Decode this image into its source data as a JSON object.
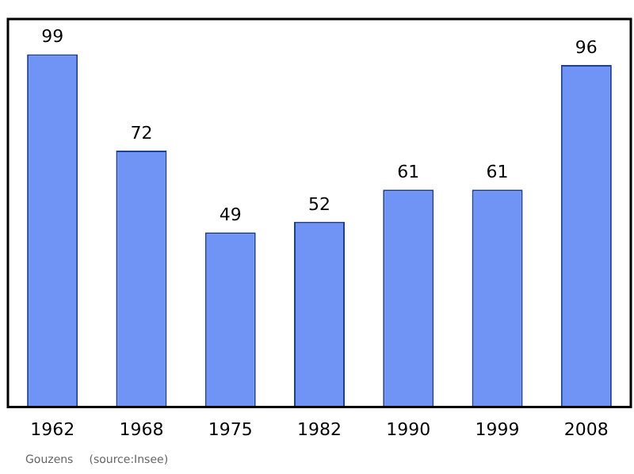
{
  "chart_data": {
    "type": "bar",
    "categories": [
      "1962",
      "1968",
      "1975",
      "1982",
      "1990",
      "1999",
      "2008"
    ],
    "values": [
      99,
      72,
      49,
      52,
      61,
      61,
      96
    ],
    "color": "#6f94f5",
    "data_labels": true,
    "grid": false,
    "legend": false,
    "annotations": [
      "Gouzens",
      "(source:Insee)"
    ]
  }
}
